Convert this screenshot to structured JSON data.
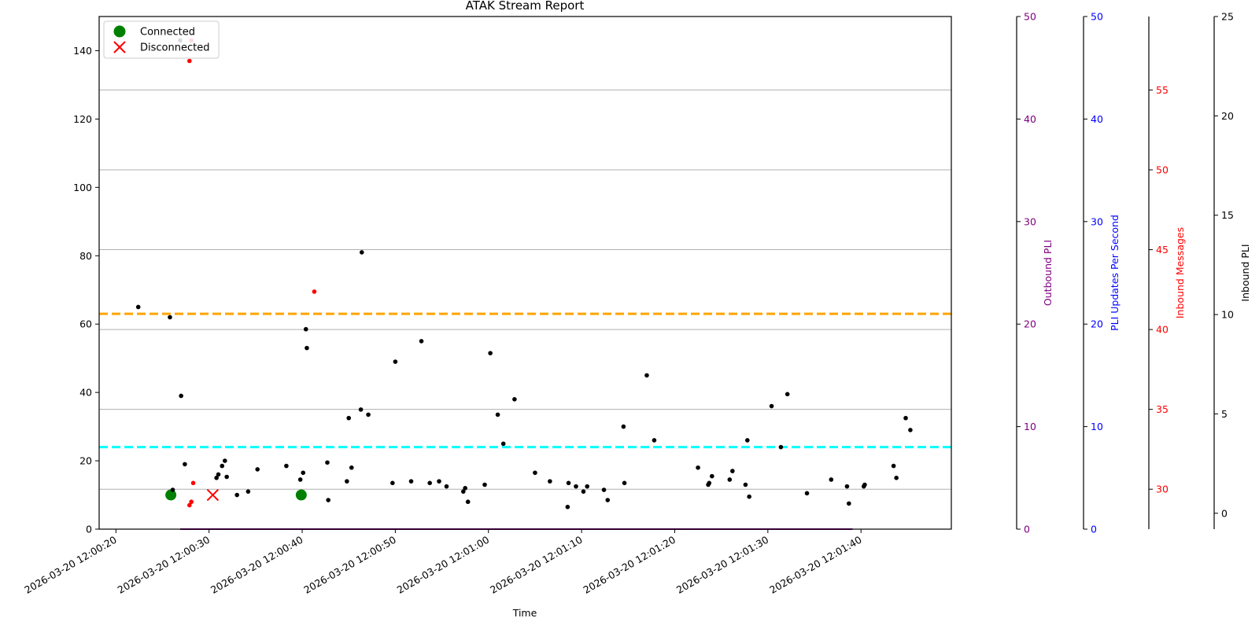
{
  "chart_data": {
    "type": "scatter",
    "title": "ATAK Stream Report",
    "xlabel": "Time",
    "x_ticks": [
      "2026-03-20 12:00:20",
      "2026-03-20 12:00:30",
      "2026-03-20 12:00:40",
      "2026-03-20 12:00:50",
      "2026-03-20 12:01:00",
      "2026-03-20 12:01:10",
      "2026-03-20 12:01:20",
      "2026-03-20 12:01:30",
      "2026-03-20 12:01:40"
    ],
    "xlim": [
      "2026-03-20 12:00:18.2",
      "2026-03-20 12:01:49.7"
    ],
    "ylim": [
      0,
      150
    ],
    "y_ticks": [
      0,
      20,
      40,
      60,
      80,
      100,
      120,
      140
    ],
    "grid": "horizontal lines at the inbound-messages axis ticks",
    "legend": {
      "placement": "top-left",
      "entries": [
        {
          "label": "Connected",
          "marker": "circle",
          "color": "#008000"
        },
        {
          "label": "Disconnected",
          "marker": "x",
          "color": "#ff0000"
        }
      ]
    },
    "secondary_axes": [
      {
        "label": "Outbound PLI",
        "color": "#800080",
        "ylim": [
          0,
          50
        ],
        "ticks": [
          0,
          10,
          20,
          30,
          40,
          50
        ]
      },
      {
        "label": "PLI Updates Per Second",
        "color": "#0000ff",
        "ylim": [
          0,
          50
        ],
        "ticks": [
          0,
          10,
          20,
          30,
          40,
          50
        ]
      },
      {
        "label": "Inbound Messages",
        "color": "#ff0000",
        "ylim": [
          27.5,
          59.6
        ],
        "ticks": [
          30,
          35,
          40,
          45,
          50,
          55
        ]
      },
      {
        "label": "Inbound PLI",
        "color": "#000000",
        "ylim": [
          -0.8,
          25
        ],
        "ticks": [
          0,
          5,
          10,
          15,
          20,
          25
        ]
      }
    ],
    "reference_lines": [
      {
        "color": "#ffa500",
        "style": "dashed",
        "y": 63
      },
      {
        "color": "#00ffff",
        "style": "dashed",
        "y": 24
      }
    ],
    "outbound_line": {
      "color": "#800080",
      "y": 0,
      "x_start": "2026-03-20 12:00:26.9",
      "x_end": "2026-03-20 12:01:39.1"
    },
    "series": [
      {
        "name": "Connected",
        "color": "#008000",
        "marker": "circle",
        "points": [
          [
            "2026-03-20 12:00:25.9",
            10
          ],
          [
            "2026-03-20 12:00:39.9",
            10
          ]
        ]
      },
      {
        "name": "Disconnected",
        "color": "#ff0000",
        "marker": "x",
        "points": [
          [
            "2026-03-20 12:00:30.4",
            10
          ]
        ]
      },
      {
        "color": "#000000",
        "marker": "dot",
        "points": [
          [
            "2026-03-20 12:00:22.4",
            65
          ],
          [
            "2026-03-20 12:00:25.8",
            62
          ],
          [
            "2026-03-20 12:00:26.1",
            11.5
          ],
          [
            "2026-03-20 12:00:26.9",
            143
          ],
          [
            "2026-03-20 12:00:27.0",
            39
          ],
          [
            "2026-03-20 12:00:27.4",
            19
          ],
          [
            "2026-03-20 12:00:30.8",
            15
          ],
          [
            "2026-03-20 12:00:31.0",
            16
          ],
          [
            "2026-03-20 12:00:31.4",
            18.5
          ],
          [
            "2026-03-20 12:00:31.7",
            20
          ],
          [
            "2026-03-20 12:00:31.9",
            15.3
          ],
          [
            "2026-03-20 12:00:33.0",
            10
          ],
          [
            "2026-03-20 12:00:34.2",
            11
          ],
          [
            "2026-03-20 12:00:35.2",
            17.5
          ],
          [
            "2026-03-20 12:00:38.3",
            18.5
          ],
          [
            "2026-03-20 12:00:39.8",
            14.5
          ],
          [
            "2026-03-20 12:00:40.1",
            16.5
          ],
          [
            "2026-03-20 12:00:40.4",
            58.5
          ],
          [
            "2026-03-20 12:00:40.5",
            53
          ],
          [
            "2026-03-20 12:00:42.7",
            19.5
          ],
          [
            "2026-03-20 12:00:42.8",
            8.5
          ],
          [
            "2026-03-20 12:00:44.8",
            14
          ],
          [
            "2026-03-20 12:00:45.0",
            32.5
          ],
          [
            "2026-03-20 12:00:45.3",
            18
          ],
          [
            "2026-03-20 12:00:46.3",
            35
          ],
          [
            "2026-03-20 12:00:46.4",
            81
          ],
          [
            "2026-03-20 12:00:47.1",
            33.5
          ],
          [
            "2026-03-20 12:00:49.7",
            13.5
          ],
          [
            "2026-03-20 12:00:50.0",
            49
          ],
          [
            "2026-03-20 12:00:51.7",
            14
          ],
          [
            "2026-03-20 12:00:52.8",
            55
          ],
          [
            "2026-03-20 12:00:53.7",
            13.5
          ],
          [
            "2026-03-20 12:00:54.7",
            14
          ],
          [
            "2026-03-20 12:00:55.5",
            12.5
          ],
          [
            "2026-03-20 12:00:57.3",
            11
          ],
          [
            "2026-03-20 12:00:57.5",
            12
          ],
          [
            "2026-03-20 12:00:57.8",
            8
          ],
          [
            "2026-03-20 12:00:59.6",
            13
          ],
          [
            "2026-03-20 12:01:00.2",
            51.5
          ],
          [
            "2026-03-20 12:01:01.0",
            33.5
          ],
          [
            "2026-03-20 12:01:01.6",
            25
          ],
          [
            "2026-03-20 12:01:02.8",
            38
          ],
          [
            "2026-03-20 12:01:05.0",
            16.5
          ],
          [
            "2026-03-20 12:01:06.6",
            14
          ],
          [
            "2026-03-20 12:01:08.5",
            6.5
          ],
          [
            "2026-03-20 12:01:08.6",
            13.5
          ],
          [
            "2026-03-20 12:01:09.4",
            12.5
          ],
          [
            "2026-03-20 12:01:10.2",
            11
          ],
          [
            "2026-03-20 12:01:10.6",
            12.5
          ],
          [
            "2026-03-20 12:01:12.4",
            11.5
          ],
          [
            "2026-03-20 12:01:12.8",
            8.5
          ],
          [
            "2026-03-20 12:01:14.5",
            30
          ],
          [
            "2026-03-20 12:01:14.6",
            13.5
          ],
          [
            "2026-03-20 12:01:17.0",
            45
          ],
          [
            "2026-03-20 12:01:17.8",
            26
          ],
          [
            "2026-03-20 12:01:22.5",
            18
          ],
          [
            "2026-03-20 12:01:23.6",
            13
          ],
          [
            "2026-03-20 12:01:23.7",
            13.5
          ],
          [
            "2026-03-20 12:01:24.0",
            15.5
          ],
          [
            "2026-03-20 12:01:25.9",
            14.5
          ],
          [
            "2026-03-20 12:01:26.2",
            17
          ],
          [
            "2026-03-20 12:01:27.6",
            13
          ],
          [
            "2026-03-20 12:01:27.8",
            26
          ],
          [
            "2026-03-20 12:01:28.0",
            9.5
          ],
          [
            "2026-03-20 12:01:30.4",
            36
          ],
          [
            "2026-03-20 12:01:31.4",
            24
          ],
          [
            "2026-03-20 12:01:32.1",
            39.5
          ],
          [
            "2026-03-20 12:01:34.2",
            10.5
          ],
          [
            "2026-03-20 12:01:36.8",
            14.5
          ],
          [
            "2026-03-20 12:01:38.5",
            12.5
          ],
          [
            "2026-03-20 12:01:38.7",
            7.5
          ],
          [
            "2026-03-20 12:01:40.3",
            12.5
          ],
          [
            "2026-03-20 12:01:40.4",
            13
          ],
          [
            "2026-03-20 12:01:43.5",
            18.5
          ],
          [
            "2026-03-20 12:01:43.8",
            15
          ],
          [
            "2026-03-20 12:01:44.8",
            32.5
          ],
          [
            "2026-03-20 12:01:45.3",
            29
          ]
        ]
      },
      {
        "color": "#ff0000",
        "marker": "dot",
        "points": [
          [
            "2026-03-20 12:00:27.9",
            137
          ],
          [
            "2026-03-20 12:00:28.1",
            143
          ],
          [
            "2026-03-20 12:00:27.9",
            7
          ],
          [
            "2026-03-20 12:00:28.1",
            8
          ],
          [
            "2026-03-20 12:00:28.3",
            13.5
          ],
          [
            "2026-03-20 12:00:41.3",
            69.5
          ]
        ]
      }
    ]
  }
}
